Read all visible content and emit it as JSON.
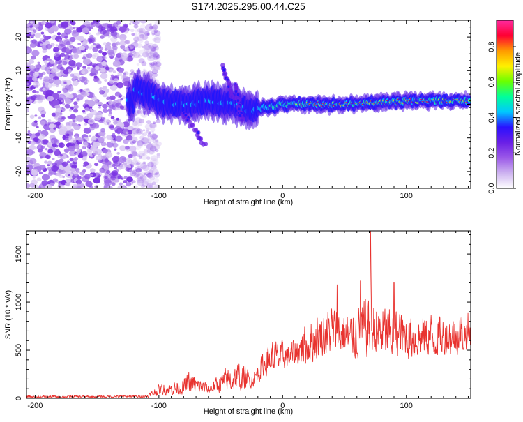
{
  "title": "S174.2025.295.00.44.C25",
  "chart_data": [
    {
      "type": "heatmap",
      "xlabel": "Height of straight line (km)",
      "ylabel": "Frequency (Hz)",
      "xlim": [
        -207,
        152
      ],
      "ylim": [
        -25,
        25
      ],
      "xticks": [
        -200,
        -100,
        0,
        100
      ],
      "yticks": [
        -20,
        -10,
        0,
        10,
        20
      ],
      "colorbar": {
        "label": "Normalized spectral amplitude",
        "range": [
          0.0,
          0.95
        ],
        "ticks": [
          0.0,
          0.2,
          0.4,
          0.6,
          0.8
        ],
        "colormap": [
          "#ffffff",
          "#cdb3f0",
          "#9b59e8",
          "#6a1fe6",
          "#2a10ff",
          "#00c8ff",
          "#00ff9a",
          "#6aff00",
          "#fff000",
          "#ff9a00",
          "#ff0033",
          "#ff2aa0"
        ]
      },
      "signal_track": [
        {
          "x": -120,
          "freq": 5
        },
        {
          "x": -100,
          "freq": 1
        },
        {
          "x": -80,
          "freq": 0
        },
        {
          "x": -60,
          "freq": 1
        },
        {
          "x": -40,
          "freq": 0
        },
        {
          "x": -25,
          "freq": -2
        },
        {
          "x": 0,
          "freq": 0
        },
        {
          "x": 50,
          "freq": 0
        },
        {
          "x": 100,
          "freq": 1
        },
        {
          "x": 150,
          "freq": 1
        }
      ],
      "secondary_branches": [
        {
          "from": {
            "x": -80,
            "freq": -3
          },
          "to": {
            "x": -63,
            "freq": -12
          }
        },
        {
          "from": {
            "x": -48,
            "freq": 11
          },
          "to": {
            "x": -40,
            "freq": 2
          }
        },
        {
          "from": {
            "x": -38,
            "freq": 6
          },
          "to": {
            "x": -33,
            "freq": -5
          }
        }
      ],
      "noise_region_xmax": -110
    },
    {
      "type": "line",
      "xlabel": "Height of straight line (km)",
      "ylabel": "SNR (10 * v/v)",
      "xlim": [
        -207,
        152
      ],
      "ylim": [
        0,
        1740
      ],
      "xticks": [
        -200,
        -100,
        0,
        100
      ],
      "yticks": [
        0,
        500,
        1000,
        1500
      ],
      "color": "#e8332f",
      "envelope": [
        {
          "x": -207,
          "low": 0,
          "high": 35
        },
        {
          "x": -110,
          "low": 5,
          "high": 40
        },
        {
          "x": -100,
          "low": 20,
          "high": 170
        },
        {
          "x": -80,
          "low": 30,
          "high": 230
        },
        {
          "x": -75,
          "low": 30,
          "high": 330
        },
        {
          "x": -60,
          "low": 40,
          "high": 170
        },
        {
          "x": -45,
          "low": 50,
          "high": 380
        },
        {
          "x": -35,
          "low": 50,
          "high": 440
        },
        {
          "x": -25,
          "low": 100,
          "high": 300
        },
        {
          "x": -10,
          "low": 250,
          "high": 680
        },
        {
          "x": 5,
          "low": 300,
          "high": 620
        },
        {
          "x": 20,
          "low": 320,
          "high": 900
        },
        {
          "x": 40,
          "low": 420,
          "high": 1100
        },
        {
          "x": 55,
          "low": 380,
          "high": 1000
        },
        {
          "x": 70,
          "low": 380,
          "high": 1200
        },
        {
          "x": 80,
          "low": 380,
          "high": 1120
        },
        {
          "x": 100,
          "low": 380,
          "high": 1000
        },
        {
          "x": 130,
          "low": 400,
          "high": 960
        },
        {
          "x": 152,
          "low": 460,
          "high": 1000
        }
      ],
      "peaks": [
        {
          "x": 44,
          "y": 1180
        },
        {
          "x": 71,
          "y": 1740
        },
        {
          "x": 63,
          "y": 1220
        },
        {
          "x": 90,
          "y": 1200
        }
      ]
    }
  ]
}
